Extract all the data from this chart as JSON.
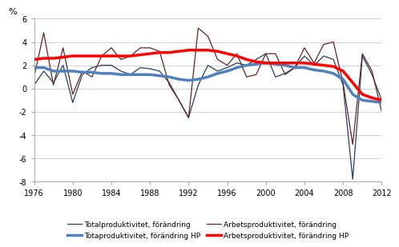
{
  "years": [
    1976,
    1977,
    1978,
    1979,
    1980,
    1981,
    1982,
    1983,
    1984,
    1985,
    1986,
    1987,
    1988,
    1989,
    1990,
    1991,
    1992,
    1993,
    1994,
    1995,
    1996,
    1997,
    1998,
    1999,
    2000,
    2001,
    2002,
    2003,
    2004,
    2005,
    2006,
    2007,
    2008,
    2009,
    2010,
    2011,
    2012
  ],
  "total_prod": [
    0.3,
    1.5,
    0.5,
    2.0,
    -1.2,
    1.2,
    1.8,
    2.0,
    2.0,
    1.5,
    1.2,
    1.8,
    1.7,
    1.5,
    0.5,
    -1.0,
    -2.5,
    0.3,
    2.0,
    1.5,
    1.8,
    2.2,
    2.0,
    2.5,
    3.0,
    1.0,
    1.3,
    1.8,
    2.8,
    2.0,
    2.8,
    2.5,
    0.3,
    -7.8,
    2.8,
    1.2,
    -1.0
  ],
  "total_prod_hp": [
    1.8,
    1.8,
    1.5,
    1.5,
    1.5,
    1.4,
    1.4,
    1.3,
    1.3,
    1.2,
    1.2,
    1.2,
    1.2,
    1.1,
    1.0,
    0.8,
    0.7,
    0.8,
    1.0,
    1.3,
    1.5,
    1.8,
    2.0,
    2.1,
    2.2,
    2.1,
    2.0,
    1.8,
    1.8,
    1.6,
    1.5,
    1.3,
    0.8,
    -0.5,
    -1.0,
    -1.1,
    -1.2
  ],
  "arb_prod": [
    1.0,
    4.8,
    0.3,
    3.5,
    -0.5,
    1.5,
    1.0,
    2.8,
    3.5,
    2.5,
    2.8,
    3.5,
    3.5,
    3.2,
    0.3,
    -1.0,
    -2.5,
    5.2,
    4.5,
    2.5,
    2.0,
    3.0,
    1.0,
    1.2,
    3.0,
    3.0,
    1.2,
    1.8,
    3.5,
    2.2,
    3.8,
    4.0,
    0.5,
    -4.8,
    3.0,
    1.5,
    -2.0
  ],
  "arb_prod_hp": [
    2.5,
    2.6,
    2.6,
    2.7,
    2.8,
    2.8,
    2.8,
    2.8,
    2.8,
    2.8,
    2.8,
    2.9,
    3.0,
    3.1,
    3.1,
    3.2,
    3.3,
    3.3,
    3.3,
    3.2,
    3.0,
    2.8,
    2.5,
    2.3,
    2.2,
    2.2,
    2.2,
    2.2,
    2.2,
    2.1,
    2.0,
    1.9,
    1.5,
    0.5,
    -0.5,
    -0.8,
    -1.0
  ],
  "color_total": "#243F60",
  "color_total_hp": "#4F81BD",
  "color_arb": "#632523",
  "color_arb_hp": "#FF0000",
  "ylabel": "%",
  "ylim": [
    -8,
    6
  ],
  "yticks": [
    -8,
    -6,
    -4,
    -2,
    0,
    2,
    4,
    6
  ],
  "xticks": [
    1976,
    1980,
    1984,
    1988,
    1992,
    1996,
    2000,
    2004,
    2008,
    2012
  ],
  "legend_labels": [
    "Totalproduktivitet, förändring",
    "Totaproduktivitet, förändring HP",
    "Arbetsproduktivitet, förändring",
    "Arbetsproduktivitet, förändring HP"
  ],
  "lw_thin": 0.9,
  "lw_thick": 2.5,
  "bg_color": "#FFFFFF",
  "grid_color": "#C0C0C0"
}
